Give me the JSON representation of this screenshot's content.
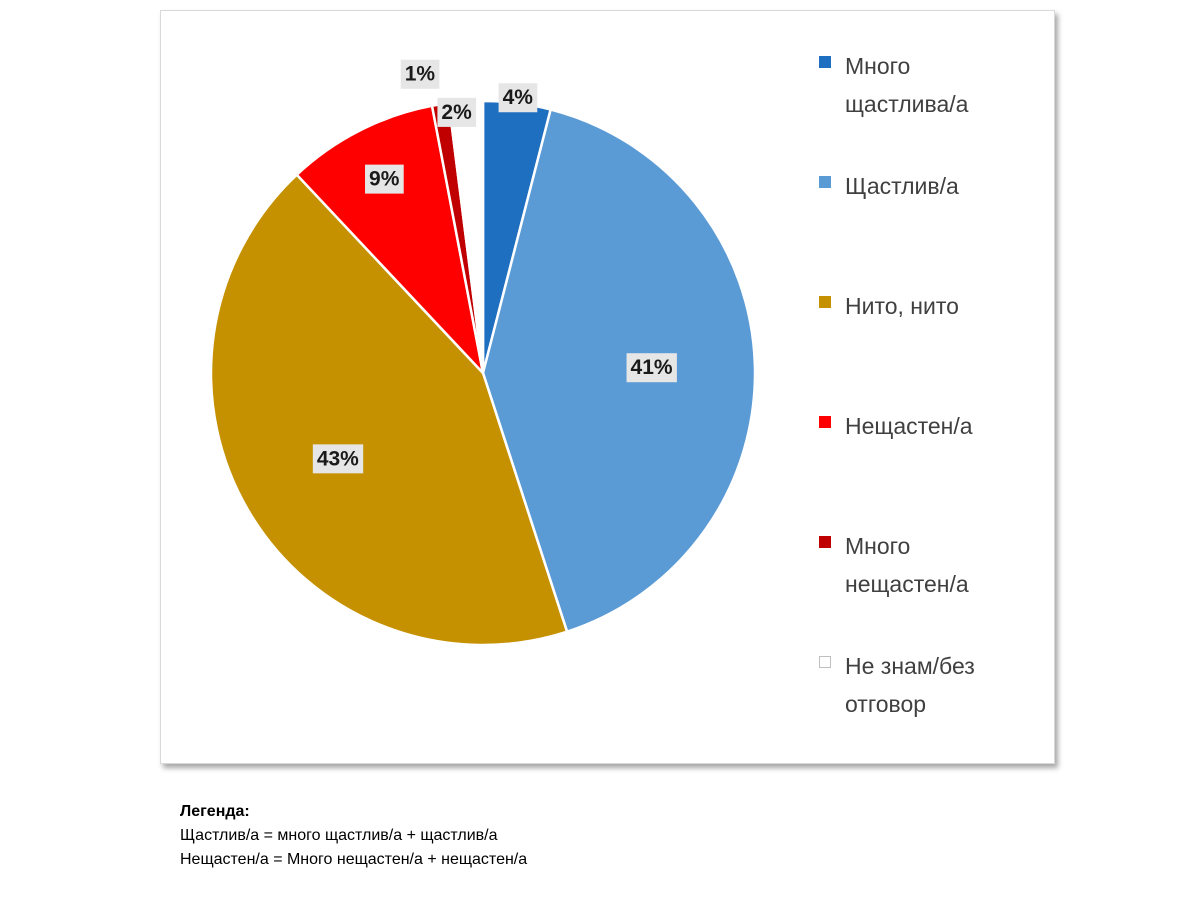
{
  "chart_data": {
    "type": "pie",
    "title": "",
    "slices": [
      {
        "name": "Много щастлива/а",
        "value": 4,
        "label": "4%",
        "color": "#1f6fc1"
      },
      {
        "name": "Щастлив/а",
        "value": 41,
        "label": "41%",
        "color": "#5b9bd5"
      },
      {
        "name": "Нито, нито",
        "value": 43,
        "label": "43%",
        "color": "#c59100"
      },
      {
        "name": "Нещастен/а",
        "value": 9,
        "label": "9%",
        "color": "#ff0000"
      },
      {
        "name": "Много нещастен/а",
        "value": 1,
        "label": "1%",
        "color": "#c00000"
      },
      {
        "name": "Не знам/без отговор",
        "value": 2,
        "label": "2%",
        "color": "#ffffff"
      }
    ],
    "legend_position": "right"
  },
  "legend": {
    "items": [
      {
        "line1": "Много",
        "line2": "щастлива/а"
      },
      {
        "line1": "Щастлив/а",
        "line2": ""
      },
      {
        "line1": "Нито, нито",
        "line2": ""
      },
      {
        "line1": "Нещастен/а",
        "line2": ""
      },
      {
        "line1": "Много",
        "line2": "нещастен/а"
      },
      {
        "line1": "Не знам/без",
        "line2": "отговор"
      }
    ]
  },
  "note": {
    "title": "Легенда:",
    "line1": "Щастлив/а = много щастлив/а + щастлив/а",
    "line2": "Нещастен/а = Много нещастен/а + нещастен/а"
  }
}
